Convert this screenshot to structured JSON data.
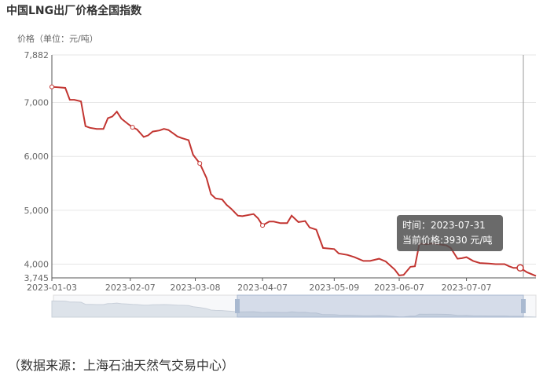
{
  "title": "中国LNG出厂价格全国指数",
  "source_note": "（数据来源：上海石油天然气交易中心）",
  "tooltip": {
    "time_label": "时间：",
    "time_value": "2023-07-31",
    "price_label": "当前价格:",
    "price_value": "3930 元/吨"
  },
  "chart_data": {
    "type": "line",
    "ylabel": "价格（单位：元/吨）",
    "ylim": [
      3745,
      7882
    ],
    "y_ticks": [
      "3,745",
      "4,000",
      "5,000",
      "6,000",
      "7,000",
      "7,882"
    ],
    "x_ticks": [
      "2023-01-03",
      "2023-02-07",
      "2023-03-08",
      "2023-04-07",
      "2023-05-09",
      "2023-06-07",
      "2023-07-07"
    ],
    "line_color": "#c23531",
    "series": [
      {
        "values": [
          [
            "2023-01-03",
            7290
          ],
          [
            "2023-01-06",
            7280
          ],
          [
            "2023-01-09",
            7270
          ],
          [
            "2023-01-11",
            7050
          ],
          [
            "2023-01-13",
            7050
          ],
          [
            "2023-01-16",
            7020
          ],
          [
            "2023-01-18",
            6560
          ],
          [
            "2023-01-20",
            6530
          ],
          [
            "2023-01-23",
            6510
          ],
          [
            "2023-01-26",
            6510
          ],
          [
            "2023-01-28",
            6710
          ],
          [
            "2023-01-30",
            6740
          ],
          [
            "2023-02-01",
            6830
          ],
          [
            "2023-02-03",
            6700
          ],
          [
            "2023-02-06",
            6600
          ],
          [
            "2023-02-08",
            6540
          ],
          [
            "2023-02-10",
            6500
          ],
          [
            "2023-02-13",
            6360
          ],
          [
            "2023-02-15",
            6390
          ],
          [
            "2023-02-17",
            6460
          ],
          [
            "2023-02-20",
            6480
          ],
          [
            "2023-02-22",
            6510
          ],
          [
            "2023-02-24",
            6490
          ],
          [
            "2023-02-27",
            6400
          ],
          [
            "2023-02-28",
            6370
          ],
          [
            "2023-03-02",
            6340
          ],
          [
            "2023-03-05",
            6300
          ],
          [
            "2023-03-07",
            6030
          ],
          [
            "2023-03-10",
            5870
          ],
          [
            "2023-03-13",
            5600
          ],
          [
            "2023-03-15",
            5300
          ],
          [
            "2023-03-17",
            5220
          ],
          [
            "2023-03-20",
            5200
          ],
          [
            "2023-03-22",
            5100
          ],
          [
            "2023-03-24",
            5030
          ],
          [
            "2023-03-27",
            4900
          ],
          [
            "2023-03-29",
            4890
          ],
          [
            "2023-04-03",
            4930
          ],
          [
            "2023-04-05",
            4850
          ],
          [
            "2023-04-07",
            4720
          ],
          [
            "2023-04-10",
            4790
          ],
          [
            "2023-04-12",
            4790
          ],
          [
            "2023-04-15",
            4760
          ],
          [
            "2023-04-18",
            4760
          ],
          [
            "2023-04-20",
            4900
          ],
          [
            "2023-04-23",
            4780
          ],
          [
            "2023-04-26",
            4800
          ],
          [
            "2023-04-28",
            4680
          ],
          [
            "2023-05-01",
            4640
          ],
          [
            "2023-05-04",
            4300
          ],
          [
            "2023-05-09",
            4280
          ],
          [
            "2023-05-11",
            4200
          ],
          [
            "2023-05-15",
            4170
          ],
          [
            "2023-05-18",
            4130
          ],
          [
            "2023-05-22",
            4060
          ],
          [
            "2023-05-25",
            4060
          ],
          [
            "2023-05-29",
            4100
          ],
          [
            "2023-06-01",
            4050
          ],
          [
            "2023-06-05",
            3900
          ],
          [
            "2023-06-07",
            3790
          ],
          [
            "2023-06-09",
            3800
          ],
          [
            "2023-06-12",
            3950
          ],
          [
            "2023-06-14",
            3960
          ],
          [
            "2023-06-16",
            4380
          ],
          [
            "2023-06-19",
            4370
          ],
          [
            "2023-06-21",
            4380
          ],
          [
            "2023-06-23",
            4380
          ],
          [
            "2023-06-26",
            4360
          ],
          [
            "2023-06-28",
            4350
          ],
          [
            "2023-06-30",
            4300
          ],
          [
            "2023-07-03",
            4100
          ],
          [
            "2023-07-05",
            4110
          ],
          [
            "2023-07-07",
            4130
          ],
          [
            "2023-07-10",
            4060
          ],
          [
            "2023-07-13",
            4020
          ],
          [
            "2023-07-17",
            4010
          ],
          [
            "2023-07-20",
            4000
          ],
          [
            "2023-07-24",
            4000
          ],
          [
            "2023-07-26",
            3960
          ],
          [
            "2023-07-28",
            3930
          ],
          [
            "2023-07-31",
            3930
          ],
          [
            "2023-08-03",
            3850
          ],
          [
            "2023-08-07",
            3780
          ]
        ]
      }
    ],
    "highlight": [
      "2023-07-31",
      3930
    ]
  }
}
